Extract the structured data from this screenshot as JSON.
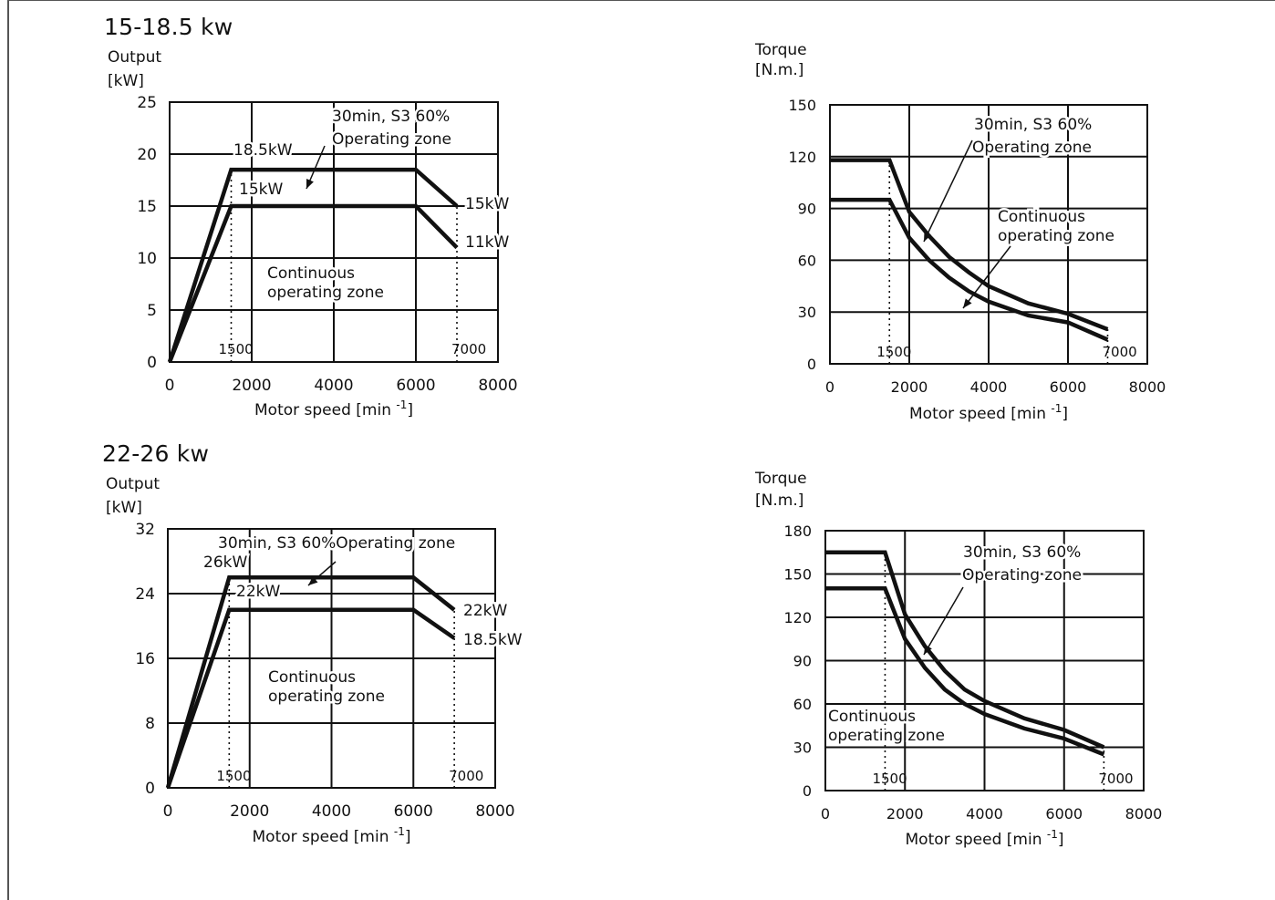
{
  "sections": [
    {
      "title": "15-18.5 kw"
    },
    {
      "title": "22-26 kw"
    }
  ],
  "chart_data": [
    {
      "type": "line",
      "ylabel": [
        "Output",
        "[kW]"
      ],
      "xlabel": "Motor speed [min -1]",
      "xlim": [
        0,
        8000
      ],
      "ylim": [
        0,
        25
      ],
      "x_ticks": [
        0,
        2000,
        4000,
        6000,
        8000
      ],
      "y_ticks": [
        0,
        5,
        10,
        15,
        20,
        25
      ],
      "grid": true,
      "series": [
        {
          "name": "30min, S3 60% Operating zone",
          "x": [
            0,
            1500,
            6000,
            7000
          ],
          "y": [
            0,
            18.5,
            18.5,
            15
          ]
        },
        {
          "name": "Continuous operating zone",
          "x": [
            0,
            1500,
            6000,
            7000
          ],
          "y": [
            0,
            15,
            15,
            11
          ]
        }
      ],
      "vlines": [
        {
          "x": 1500,
          "label": "1500"
        },
        {
          "x": 7000,
          "label": "7000"
        }
      ],
      "annotations": [
        "18.5kW",
        "15kW",
        "15kW",
        "11kW",
        "30min, S3 60%",
        "Operating zone",
        "Continuous",
        "operating zone"
      ]
    },
    {
      "type": "line",
      "ylabel": [
        "Torque",
        "[N.m.]"
      ],
      "xlabel": "Motor speed [min -1]",
      "xlim": [
        0,
        8000
      ],
      "ylim": [
        0,
        150
      ],
      "x_ticks": [
        0,
        2000,
        4000,
        6000,
        8000
      ],
      "y_ticks": [
        0,
        30,
        60,
        90,
        120,
        150
      ],
      "grid": true,
      "series": [
        {
          "name": "30min, S3 60% Operating zone",
          "x": [
            0,
            1500,
            2000,
            2500,
            3000,
            3500,
            4000,
            5000,
            6000,
            7000
          ],
          "y": [
            118,
            118,
            88,
            74,
            62,
            53,
            45,
            35,
            29,
            20
          ]
        },
        {
          "name": "Continuous operating zone",
          "x": [
            0,
            1500,
            2000,
            2500,
            3000,
            3500,
            4000,
            5000,
            6000,
            7000
          ],
          "y": [
            95,
            95,
            73,
            60,
            50,
            42,
            36,
            28,
            24,
            14
          ]
        }
      ],
      "vlines": [
        {
          "x": 1500,
          "label": "1500"
        },
        {
          "x": 7000,
          "label": "7000"
        }
      ],
      "annotations": [
        "30min, S3 60%",
        "Operating zone",
        "Continuous",
        "operating zone"
      ]
    },
    {
      "type": "line",
      "ylabel": [
        "Output",
        "[kW]"
      ],
      "xlabel": "Motor speed [min -1]",
      "xlim": [
        0,
        8000
      ],
      "ylim": [
        0,
        32
      ],
      "x_ticks": [
        0,
        2000,
        4000,
        6000,
        8000
      ],
      "y_ticks": [
        0,
        8,
        16,
        24,
        32
      ],
      "grid": true,
      "series": [
        {
          "name": "30min, S3 60% Operating zone",
          "x": [
            0,
            1500,
            6000,
            7000
          ],
          "y": [
            0,
            26,
            26,
            22
          ]
        },
        {
          "name": "Continuous operating zone",
          "x": [
            0,
            1500,
            6000,
            7000
          ],
          "y": [
            0,
            22,
            22,
            18.5
          ]
        }
      ],
      "vlines": [
        {
          "x": 1500,
          "label": "1500"
        },
        {
          "x": 7000,
          "label": "7000"
        }
      ],
      "annotations": [
        "26kW",
        "22kW",
        "22kW",
        "18.5kW",
        "30min, S3 60%Operating zone",
        "Continuous",
        "operating zone"
      ]
    },
    {
      "type": "line",
      "ylabel": [
        "Torque",
        "[N.m.]"
      ],
      "xlabel": "Motor speed [min -1]",
      "xlim": [
        0,
        8000
      ],
      "ylim": [
        0,
        180
      ],
      "x_ticks": [
        0,
        2000,
        4000,
        6000,
        8000
      ],
      "y_ticks": [
        0,
        30,
        60,
        90,
        120,
        150,
        180
      ],
      "grid": true,
      "series": [
        {
          "name": "30min, S3 60% Operating zone",
          "x": [
            0,
            1500,
            2000,
            2500,
            3000,
            3500,
            4000,
            5000,
            6000,
            7000
          ],
          "y": [
            165,
            165,
            122,
            100,
            83,
            70,
            62,
            50,
            42,
            30
          ]
        },
        {
          "name": "Continuous operating zone",
          "x": [
            0,
            1500,
            2000,
            2500,
            3000,
            3500,
            4000,
            5000,
            6000,
            7000
          ],
          "y": [
            140,
            140,
            105,
            85,
            70,
            60,
            53,
            43,
            36,
            25
          ]
        }
      ],
      "vlines": [
        {
          "x": 1500,
          "label": "1500"
        },
        {
          "x": 7000,
          "label": "7000"
        }
      ],
      "annotations": [
        "30min, S3 60%",
        "Operating zone",
        "Continuous",
        "operating zone"
      ]
    }
  ]
}
